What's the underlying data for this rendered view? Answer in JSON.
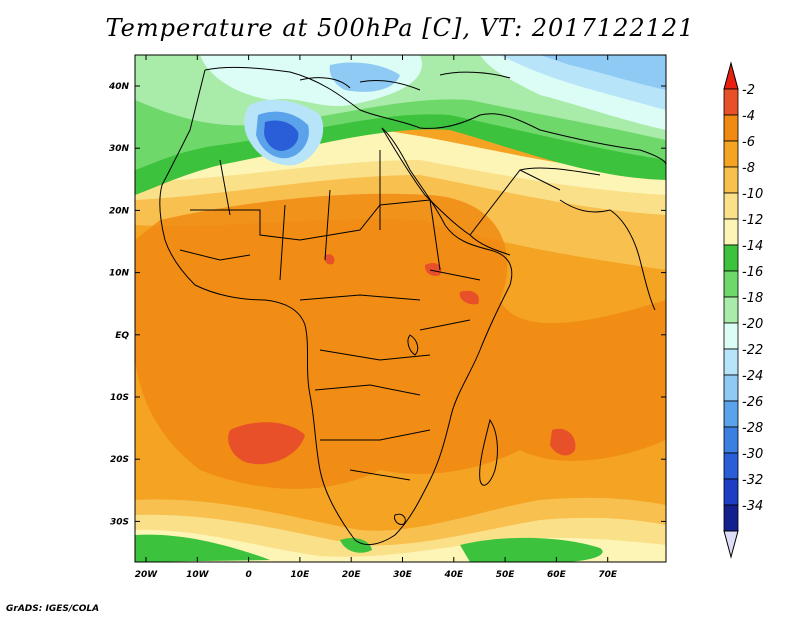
{
  "title": "Temperature at 500hPa [C], VT: 2017122121",
  "credit": "GrADS: IGES/COLA",
  "y_axis": [
    "40N",
    "30N",
    "20N",
    "10N",
    "EQ",
    "10S",
    "20S",
    "30S"
  ],
  "x_axis": [
    "20W",
    "10W",
    "0",
    "10E",
    "20E",
    "30E",
    "40E",
    "50E",
    "60E",
    "70E"
  ],
  "colorbar": {
    "labels": [
      "-2",
      "-4",
      "-6",
      "-8",
      "-10",
      "-12",
      "-14",
      "-16",
      "-18",
      "-20",
      "-22",
      "-24",
      "-26",
      "-28",
      "-30",
      "-32",
      "-34"
    ],
    "colors": [
      "#e8502a",
      "#f08a12",
      "#f5a322",
      "#f8c04e",
      "#fbe08a",
      "#fdf5b6",
      "#3cc23c",
      "#6fd86a",
      "#a9ecaa",
      "#dcfcf6",
      "#b8e4fa",
      "#8ecaf4",
      "#5aa2ea",
      "#3c7fe2",
      "#2a5ed8",
      "#1c3ec4",
      "#14208e"
    ],
    "top_arrow": "#e82010",
    "bottom_arrow": "#ddddf8"
  }
}
